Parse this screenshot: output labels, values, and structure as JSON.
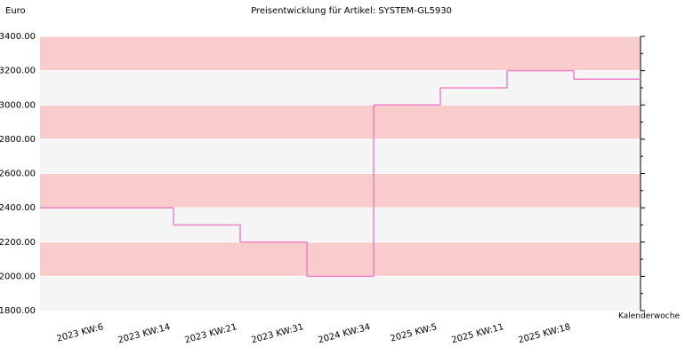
{
  "chart_data": {
    "type": "step",
    "title": "Preisentwicklung für Artikel: SYSTEM-GL5930",
    "y_label": "Euro",
    "x_label": "Kalenderwoche",
    "categories": [
      "2023 KW:6",
      "2023 KW:14",
      "2023 KW:21",
      "2023 KW:31",
      "2024 KW:34",
      "2025 KW:5",
      "2025 KW:11",
      "2025 KW:18"
    ],
    "series": [
      {
        "name": "SYSTEM-GL5930",
        "color": "#ee82c8",
        "values": [
          2400,
          2300,
          2200,
          2000,
          3000,
          3100,
          3200,
          3150
        ]
      }
    ],
    "ylim": [
      1800,
      3400
    ],
    "yticks": [
      {
        "value": 1800,
        "label": "1800.00"
      },
      {
        "value": 2000,
        "label": "2000.00"
      },
      {
        "value": 2200,
        "label": "2200.00"
      },
      {
        "value": 2400,
        "label": "2400.00"
      },
      {
        "value": 2600,
        "label": "2600.00"
      },
      {
        "value": 2800,
        "label": "2800.00"
      },
      {
        "value": 3000,
        "label": "3000.00"
      },
      {
        "value": 3200,
        "label": "3200.00"
      },
      {
        "value": 3400,
        "label": "3400.00"
      }
    ],
    "band_colors": [
      "#f5f5f5",
      "#f9cccc"
    ],
    "grid": true
  }
}
